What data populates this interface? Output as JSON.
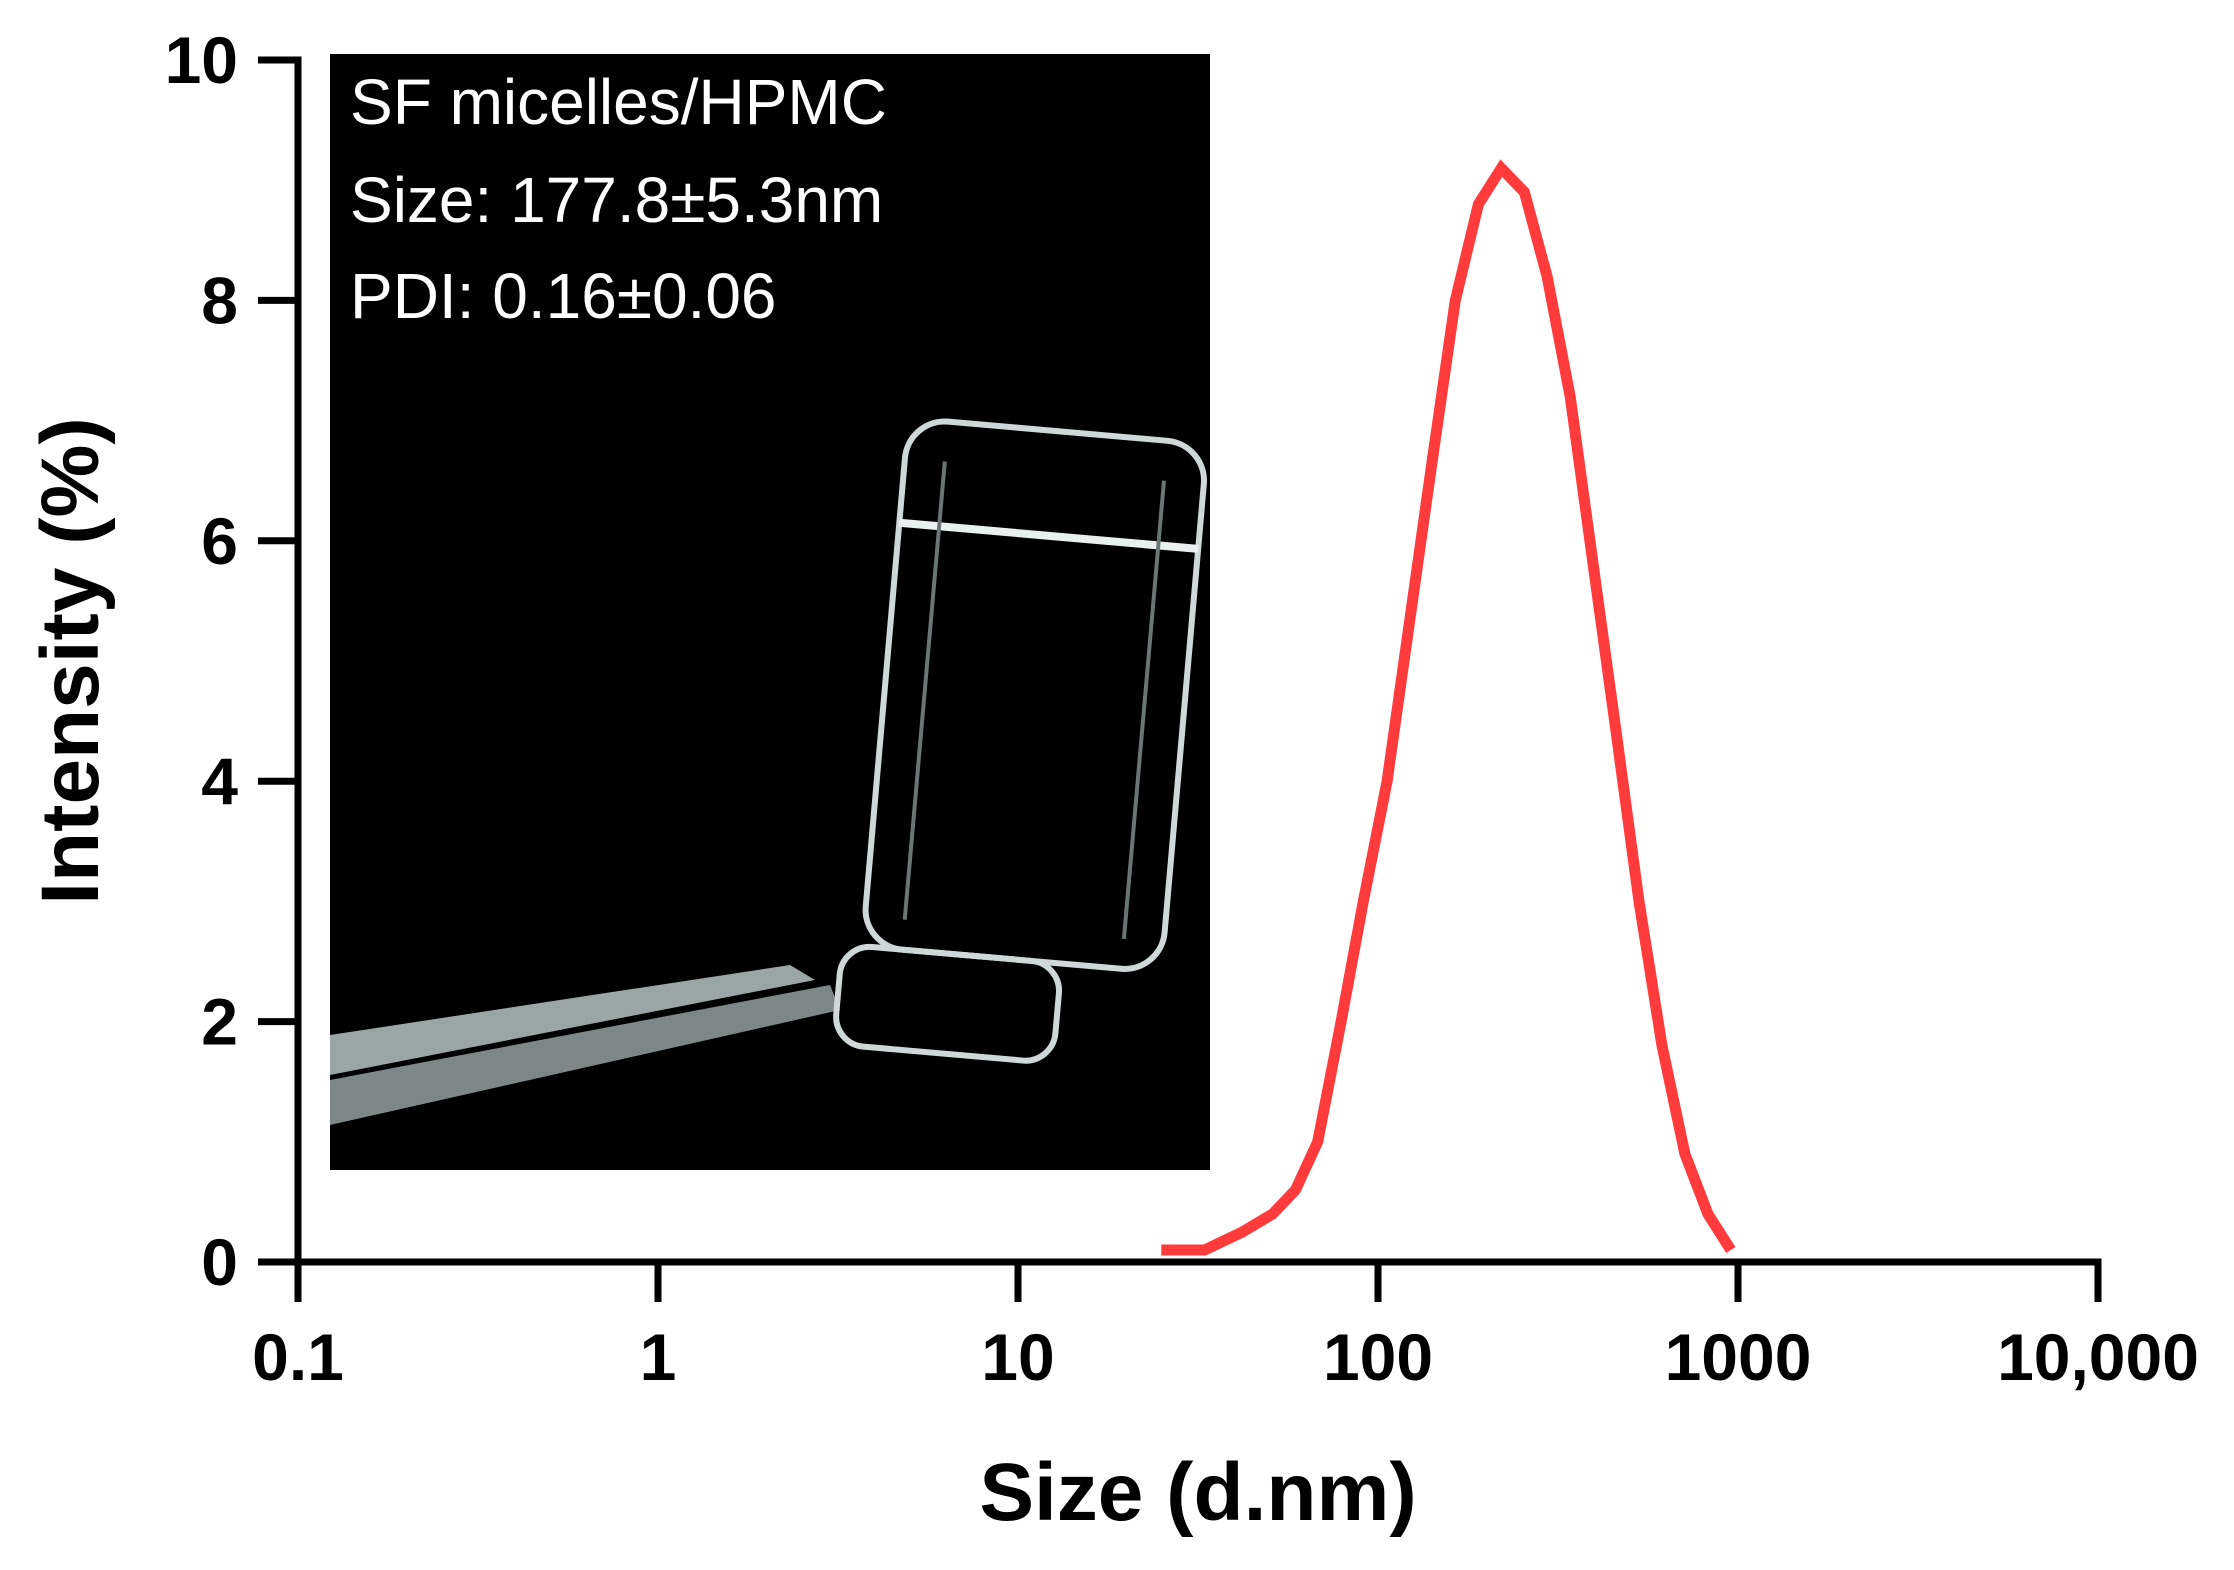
{
  "chart_data": {
    "type": "line",
    "xlabel": "Size (d.nm)",
    "ylabel": "Intensity (%)",
    "x_scale": "log",
    "xlim": [
      0.1,
      10000
    ],
    "ylim": [
      0,
      10
    ],
    "x_ticks": [
      0.1,
      1,
      10,
      100,
      1000,
      10000
    ],
    "x_tick_labels": [
      "0.1",
      "1",
      "10",
      "100",
      "1000",
      "10,000"
    ],
    "y_ticks": [
      0,
      2,
      4,
      6,
      8,
      10
    ],
    "y_tick_labels": [
      "0",
      "2",
      "4",
      "6",
      "8",
      "10"
    ],
    "grid": false,
    "series": [
      {
        "color": "#ff3b3b",
        "x": [
          25,
          33,
          42,
          51,
          59,
          68,
          79,
          91,
          106,
          122,
          142,
          164,
          190,
          220,
          255,
          295,
          342,
          396,
          459,
          531,
          615,
          712,
          825,
          955
        ],
        "y": [
          0.1,
          0.1,
          0.25,
          0.4,
          0.6,
          1.0,
          2.0,
          3.0,
          4.0,
          5.3,
          6.7,
          8.0,
          8.8,
          9.1,
          8.9,
          8.2,
          7.2,
          5.8,
          4.4,
          3.0,
          1.8,
          0.9,
          0.4,
          0.1
        ]
      }
    ],
    "inset": {
      "lines": [
        "SF micelles/HPMC",
        "Size: 177.8±5.3nm",
        "PDI: 0.16±0.06"
      ],
      "background": "#000000"
    }
  }
}
